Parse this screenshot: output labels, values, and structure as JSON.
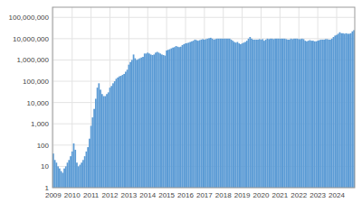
{
  "chart_data": {
    "type": "bar",
    "color": "#5b9bd5",
    "log": "y",
    "grid": true,
    "ylim": [
      1,
      300000000
    ],
    "yticks": [
      1,
      10,
      100,
      {
        "value": 1000,
        "label": "1,000"
      },
      {
        "value": 10000,
        "label": "10,000"
      },
      {
        "value": 100000,
        "label": "100,000"
      },
      {
        "value": 1000000,
        "label": "1,000,000"
      },
      {
        "value": 10000000,
        "label": "10,000,000"
      },
      {
        "value": 100000000,
        "label": "100,000,000"
      }
    ],
    "categories": [
      "2009",
      null,
      null,
      null,
      null,
      null,
      null,
      null,
      null,
      null,
      null,
      null,
      "2010",
      null,
      null,
      null,
      null,
      null,
      null,
      null,
      null,
      null,
      null,
      null,
      "2011",
      null,
      null,
      null,
      null,
      null,
      null,
      null,
      null,
      null,
      null,
      null,
      "2012",
      null,
      null,
      null,
      null,
      null,
      null,
      null,
      null,
      null,
      null,
      null,
      "2013",
      null,
      null,
      null,
      null,
      null,
      null,
      null,
      null,
      null,
      null,
      null,
      "2014",
      null,
      null,
      null,
      null,
      null,
      null,
      null,
      null,
      null,
      null,
      null,
      "2015",
      null,
      null,
      null,
      null,
      null,
      null,
      null,
      null,
      null,
      null,
      null,
      "2016",
      null,
      null,
      null,
      null,
      null,
      null,
      null,
      null,
      null,
      null,
      null,
      "2017",
      null,
      null,
      null,
      null,
      null,
      null,
      null,
      null,
      null,
      null,
      null,
      "2018",
      null,
      null,
      null,
      null,
      null,
      null,
      null,
      null,
      null,
      null,
      null,
      "2019",
      null,
      null,
      null,
      null,
      null,
      null,
      null,
      null,
      null,
      null,
      null,
      "2020",
      null,
      null,
      null,
      null,
      null,
      null,
      null,
      null,
      null,
      null,
      null,
      "2021",
      null,
      null,
      null,
      null,
      null,
      null,
      null,
      null,
      null,
      null,
      null,
      "2022",
      null,
      null,
      null,
      null,
      null,
      null,
      null,
      null,
      null,
      null,
      null,
      "2023",
      null,
      null,
      null,
      null,
      null,
      null,
      null,
      null,
      null,
      null,
      null,
      "2024",
      null,
      null,
      null,
      null,
      null,
      null,
      null,
      null,
      null,
      null,
      null
    ],
    "values": [
      40,
      20,
      15,
      10,
      8,
      6,
      5,
      8,
      10,
      15,
      20,
      30,
      50,
      120,
      60,
      15,
      10,
      12,
      15,
      20,
      30,
      50,
      80,
      200,
      800,
      2000,
      5000,
      15000,
      50000,
      80000,
      40000,
      25000,
      20000,
      20000,
      25000,
      30000,
      50000,
      60000,
      80000,
      100000,
      130000,
      150000,
      170000,
      180000,
      200000,
      220000,
      280000,
      350000,
      600000,
      800000,
      1000000,
      1800000,
      1200000,
      1000000,
      1100000,
      1200000,
      1300000,
      1400000,
      2000000,
      2000000,
      2200000,
      2000000,
      1800000,
      1700000,
      1800000,
      2200000,
      2400000,
      2200000,
      2000000,
      1800000,
      1700000,
      1600000,
      2800000,
      3000000,
      3200000,
      3500000,
      3800000,
      4000000,
      4500000,
      4200000,
      4000000,
      4200000,
      5000000,
      5500000,
      6000000,
      6200000,
      6500000,
      7000000,
      7500000,
      8000000,
      9000000,
      8500000,
      8000000,
      8500000,
      9000000,
      9500000,
      9000000,
      9500000,
      10000000,
      10500000,
      11000000,
      10000000,
      9000000,
      9500000,
      10000000,
      10000000,
      10000000,
      10000000,
      10000000,
      10000000,
      10000000,
      10000000,
      10000000,
      9000000,
      8000000,
      7000000,
      6500000,
      7000000,
      6000000,
      5500000,
      6000000,
      6500000,
      7000000,
      8000000,
      10000000,
      12000000,
      10000000,
      9000000,
      9000000,
      9000000,
      9000000,
      9500000,
      9000000,
      9500000,
      8000000,
      9000000,
      10000000,
      9500000,
      10000000,
      10000000,
      9500000,
      10000000,
      10000000,
      10000000,
      10000000,
      10000000,
      10000000,
      10000000,
      9500000,
      9000000,
      9000000,
      10000000,
      9500000,
      10000000,
      10000000,
      10000000,
      9500000,
      9500000,
      10000000,
      9500000,
      8000000,
      7500000,
      8000000,
      8500000,
      8000000,
      8000000,
      7500000,
      7500000,
      8000000,
      8500000,
      9000000,
      9000000,
      9000000,
      9500000,
      9500000,
      9000000,
      9000000,
      10000000,
      12000000,
      14000000,
      15000000,
      17000000,
      20000000,
      18000000,
      18000000,
      17000000,
      18000000,
      17000000,
      17000000,
      18000000,
      22000000,
      25000000
    ]
  }
}
